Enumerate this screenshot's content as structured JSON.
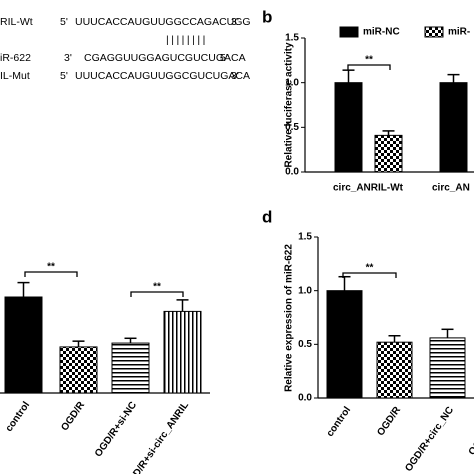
{
  "sequences": {
    "rows": [
      {
        "name": "RIL-Wt",
        "left": "5'",
        "seq": "UUUCACCAUGUUGGCCAGACUGG",
        "right": "3'"
      },
      {
        "name": "iR-622",
        "left": "3'",
        "seq": "CGAGGUUGGAGUCGUCUGACA",
        "right": "5'"
      },
      {
        "name": "IL-Mut",
        "left": "5'",
        "seq": "UUUCACCAUGUUGGCGUCUGACA",
        "right": "3'"
      }
    ],
    "pairing": "||||||||"
  },
  "chart_data": [
    {
      "type": "bar",
      "panel": "b",
      "ylabel": "Relative luciferase activity",
      "categories": [
        "circ_ANRIL-Wt",
        "circ_AN"
      ],
      "series": [
        {
          "name": "miR-NC",
          "color": "#000000",
          "pattern": "solid",
          "values": [
            1.0,
            1.0
          ],
          "errors": [
            0.14,
            0.09
          ]
        },
        {
          "name": "miR-",
          "color": "#000000",
          "pattern": "checker",
          "values": [
            0.41,
            null
          ],
          "errors": [
            0.05,
            null
          ]
        }
      ],
      "ylim": [
        0,
        1.5
      ],
      "yticks": [
        {
          "value": 0,
          "label": "0.0"
        },
        {
          "value": 0.5,
          "label": "0.5"
        },
        {
          "value": 1,
          "label": "1.0"
        },
        {
          "value": 1.5,
          "label": "1.5"
        }
      ],
      "annotations": [
        "**"
      ]
    },
    {
      "type": "bar",
      "categories": [
        "control",
        "OGD/R",
        "OGD/R+si-NC",
        "OGD/R+si-circ_ANRIL"
      ],
      "values": [
        1.0,
        0.48,
        0.52,
        0.85
      ],
      "errors": [
        0.15,
        0.06,
        0.05,
        0.12
      ],
      "patterns": [
        "solid",
        "checker",
        "hstripe",
        "vstripe"
      ],
      "color": "#000000",
      "ylim": [
        0,
        1.5
      ],
      "annotations": [
        "**",
        "**"
      ]
    },
    {
      "type": "bar",
      "panel": "d",
      "ylabel": "Relative expression of miR-622",
      "categories": [
        "control",
        "OGD/R",
        "OGD/R+circ_NC",
        "OGD/R+circ"
      ],
      "values": [
        1.0,
        0.52,
        0.56,
        null
      ],
      "errors": [
        0.13,
        0.06,
        0.08,
        null
      ],
      "patterns": [
        "solid",
        "checker",
        "hstripe",
        "vstripe"
      ],
      "color": "#000000",
      "ylim": [
        0,
        1.5
      ],
      "yticks": [
        {
          "value": 0,
          "label": "0.0"
        },
        {
          "value": 0.5,
          "label": "0.5"
        },
        {
          "value": 1,
          "label": "1.0"
        },
        {
          "value": 1.5,
          "label": "1.5"
        }
      ],
      "annotations": [
        "**"
      ]
    }
  ]
}
